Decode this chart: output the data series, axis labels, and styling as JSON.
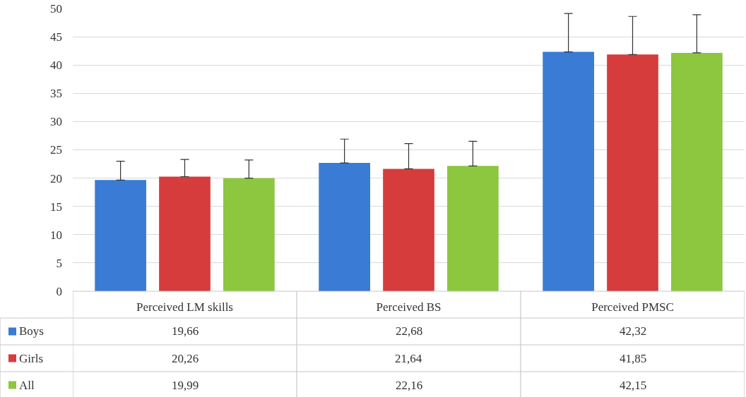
{
  "chart_data": {
    "type": "bar",
    "categories": [
      "Perceived LM skills",
      "Perceived BS",
      "Perceived PMSC"
    ],
    "series": [
      {
        "name": "Boys",
        "color": "#3a7bd5",
        "values": [
          19.66,
          22.68,
          42.32
        ],
        "value_labels": [
          "19,66",
          "22,68",
          "42,32"
        ],
        "errors": [
          [
            19.66,
            23.0
          ],
          [
            22.68,
            26.9
          ],
          [
            42.32,
            49.1
          ]
        ]
      },
      {
        "name": "Girls",
        "color": "#d63c3c",
        "values": [
          20.26,
          21.64,
          41.85
        ],
        "value_labels": [
          "20,26",
          "21,64",
          "41,85"
        ],
        "errors": [
          [
            20.26,
            23.3
          ],
          [
            21.64,
            26.1
          ],
          [
            41.85,
            48.6
          ]
        ]
      },
      {
        "name": "All",
        "color": "#8dc63f",
        "values": [
          19.99,
          22.16,
          42.15
        ],
        "value_labels": [
          "19,99",
          "22,16",
          "42,15"
        ],
        "errors": [
          [
            19.99,
            23.2
          ],
          [
            22.16,
            26.5
          ],
          [
            42.15,
            48.9
          ]
        ]
      }
    ],
    "ylim": [
      0,
      50
    ],
    "yticks": [
      0,
      5,
      10,
      15,
      20,
      25,
      30,
      35,
      40,
      45,
      50
    ],
    "grid": "y",
    "legend": "bottom"
  }
}
